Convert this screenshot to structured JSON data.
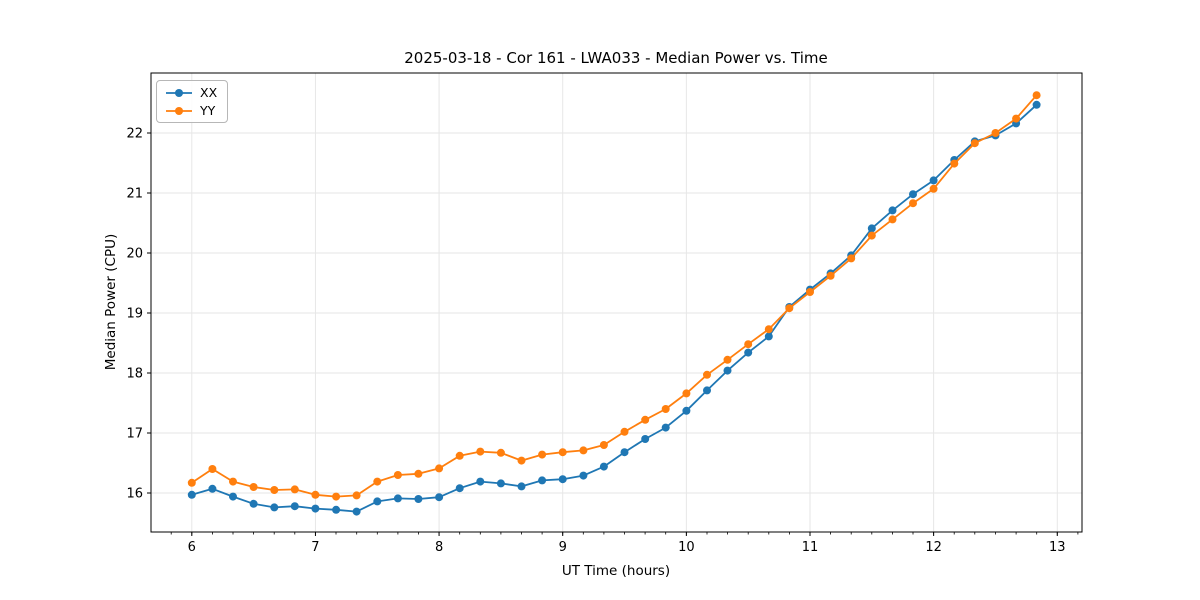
{
  "chart_data": {
    "type": "line",
    "title": "2025-03-18 - Cor 161 - LWA033 - Median Power vs. Time",
    "xlabel": "UT Time (hours)",
    "ylabel": "Median Power (CPU)",
    "x": [
      6.0,
      6.167,
      6.333,
      6.5,
      6.667,
      6.833,
      7.0,
      7.167,
      7.333,
      7.5,
      7.667,
      7.833,
      8.0,
      8.167,
      8.333,
      8.5,
      8.667,
      8.833,
      9.0,
      9.167,
      9.333,
      9.5,
      9.667,
      9.833,
      10.0,
      10.167,
      10.333,
      10.5,
      10.667,
      10.833,
      11.0,
      11.167,
      11.333,
      11.5,
      11.667,
      11.833,
      12.0,
      12.167,
      12.333,
      12.5,
      12.667,
      12.833
    ],
    "series": [
      {
        "name": "XX",
        "color": "#1f77b4",
        "values": [
          15.97,
          16.07,
          15.94,
          15.82,
          15.76,
          15.78,
          15.74,
          15.72,
          15.69,
          15.86,
          15.91,
          15.9,
          15.93,
          16.08,
          16.19,
          16.16,
          16.11,
          16.21,
          16.23,
          16.29,
          16.44,
          16.68,
          16.9,
          17.09,
          17.37,
          17.71,
          18.04,
          18.34,
          18.61,
          19.1,
          19.39,
          19.66,
          19.96,
          20.41,
          20.71,
          20.98,
          21.21,
          21.55,
          21.86,
          21.96,
          22.16,
          22.47
        ]
      },
      {
        "name": "YY",
        "color": "#ff7f0e",
        "values": [
          16.17,
          16.4,
          16.19,
          16.1,
          16.05,
          16.06,
          15.97,
          15.94,
          15.96,
          16.19,
          16.3,
          16.32,
          16.41,
          16.62,
          16.69,
          16.67,
          16.54,
          16.64,
          16.68,
          16.71,
          16.8,
          17.02,
          17.22,
          17.4,
          17.66,
          17.97,
          18.22,
          18.48,
          18.73,
          19.08,
          19.35,
          19.62,
          19.91,
          20.29,
          20.56,
          20.83,
          21.07,
          21.49,
          21.83,
          22.0,
          22.24,
          22.63
        ]
      }
    ],
    "xlim": [
      5.67,
      13.2
    ],
    "ylim": [
      15.35,
      23.0
    ],
    "xticks": [
      6,
      7,
      8,
      9,
      10,
      11,
      12,
      13
    ],
    "yticks": [
      16,
      17,
      18,
      19,
      20,
      21,
      22
    ],
    "x_minor_step": 0.1666667,
    "grid": true,
    "grid_color": "#e6e6e6",
    "axis_color": "#000000",
    "legend_location": "upper left",
    "marker": "circle",
    "background": "#ffffff"
  }
}
